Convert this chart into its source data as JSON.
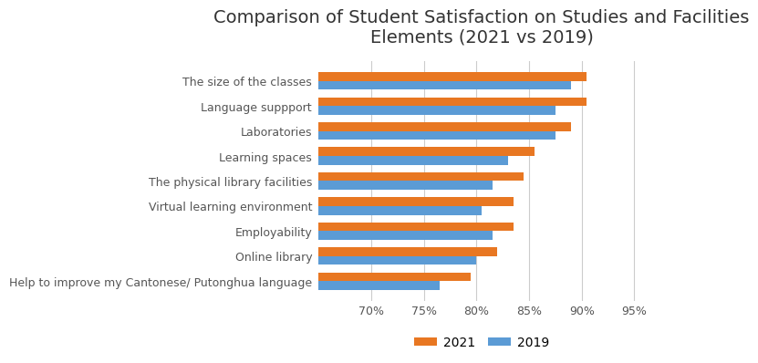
{
  "title": "Comparison of Student Satisfaction on Studies and Facilities\nElements (2021 vs 2019)",
  "categories": [
    "The size of the classes",
    "Language suppport",
    "Laboratories",
    "Learning spaces",
    "The physical library facilities",
    "Virtual learning environment",
    "Employability",
    "Online library",
    "Help to improve my Cantonese/ Putonghua language"
  ],
  "values_2021": [
    90.5,
    90.5,
    89.0,
    85.5,
    84.5,
    83.5,
    83.5,
    82.0,
    79.5
  ],
  "values_2019": [
    89.0,
    87.5,
    87.5,
    83.0,
    81.5,
    80.5,
    81.5,
    80.0,
    76.5
  ],
  "color_2021": "#E87722",
  "color_2019": "#5B9BD5",
  "xlim": [
    65,
    96
  ],
  "xticks": [
    70,
    75,
    80,
    85,
    90,
    95
  ],
  "xticklabels": [
    "70%",
    "75%",
    "80%",
    "85%",
    "90%",
    "95%"
  ],
  "legend_labels": [
    "2021",
    "2019"
  ],
  "title_fontsize": 14,
  "label_fontsize": 9,
  "tick_fontsize": 9,
  "bar_height": 0.35,
  "grid_color": "#CCCCCC"
}
